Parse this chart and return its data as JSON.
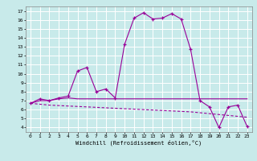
{
  "title": "",
  "xlabel": "Windchill (Refroidissement éolien,°C)",
  "background_color": "#c8eaea",
  "grid_color": "#ffffff",
  "line_color": "#990099",
  "x_hours": [
    0,
    1,
    2,
    3,
    4,
    5,
    6,
    7,
    8,
    9,
    10,
    11,
    12,
    13,
    14,
    15,
    16,
    17,
    18,
    19,
    20,
    21,
    22,
    23
  ],
  "windchill": [
    6.7,
    7.2,
    7.0,
    7.3,
    7.5,
    10.3,
    10.7,
    8.0,
    8.3,
    7.3,
    13.3,
    16.2,
    16.8,
    16.1,
    16.2,
    16.7,
    16.1,
    12.7,
    7.0,
    6.3,
    4.0,
    6.3,
    6.5,
    4.1
  ],
  "temp_line": [
    6.7,
    7.0,
    7.0,
    7.2,
    7.3,
    7.2,
    7.2,
    7.2,
    7.2,
    7.2,
    7.2,
    7.2,
    7.2,
    7.2,
    7.2,
    7.2,
    7.2,
    7.2,
    7.2,
    7.2,
    7.2,
    7.2,
    7.2,
    7.2
  ],
  "regression_line": [
    6.7,
    6.6,
    6.5,
    6.45,
    6.4,
    6.35,
    6.3,
    6.25,
    6.2,
    6.15,
    6.1,
    6.05,
    6.0,
    5.95,
    5.9,
    5.85,
    5.8,
    5.75,
    5.65,
    5.55,
    5.45,
    5.35,
    5.25,
    5.15
  ],
  "ylim": [
    3.5,
    17.5
  ],
  "xlim": [
    -0.5,
    23.5
  ],
  "yticks": [
    4,
    5,
    6,
    7,
    8,
    9,
    10,
    11,
    12,
    13,
    14,
    15,
    16,
    17
  ],
  "xticks": [
    0,
    1,
    2,
    3,
    4,
    5,
    6,
    7,
    8,
    9,
    10,
    11,
    12,
    13,
    14,
    15,
    16,
    17,
    18,
    19,
    20,
    21,
    22,
    23
  ]
}
